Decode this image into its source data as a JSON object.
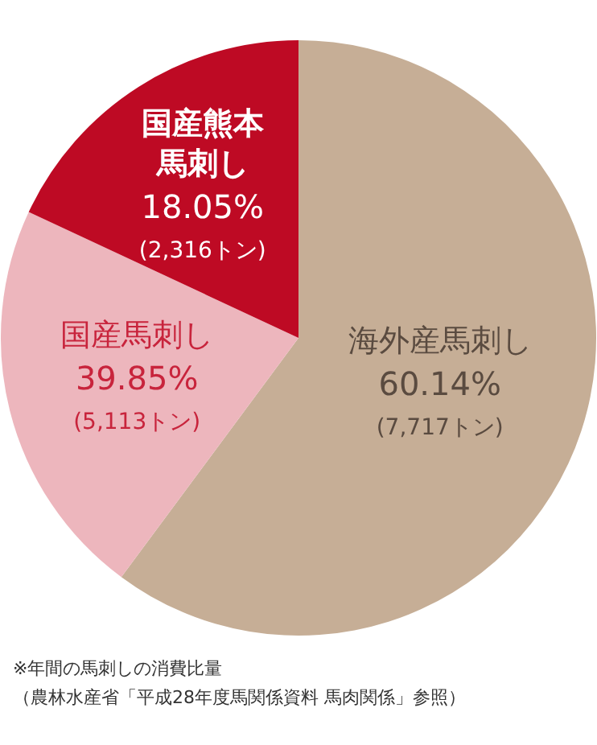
{
  "chart_data": {
    "type": "pie",
    "categories": [
      "海外産馬刺し",
      "国産馬刺し",
      "国産熊本馬刺し"
    ],
    "values": [
      60.14,
      21.8,
      18.05
    ],
    "colors": [
      "#c6ae96",
      "#edb6bd",
      "#be0a24"
    ],
    "value_labels": [
      "60.14%\n(7,717トン)",
      null,
      "18.05%\n(2,316トン)"
    ],
    "legend": false,
    "annotations": [
      "39.85%\n(5,113トン)",
      "※年間の馬刺しの消費比量",
      "（農林水産省「平成28年度馬関係資料 馬肉関係」参照）"
    ]
  }
}
